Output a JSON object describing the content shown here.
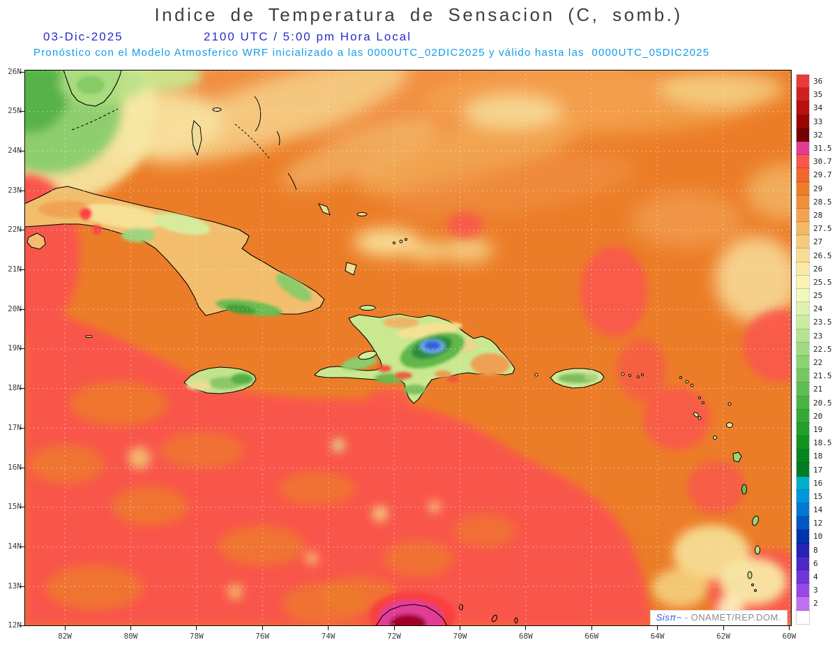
{
  "header": {
    "title": "Indice de Temperatura de Sensacion (C, somb.)",
    "date": "03-Dic-2025",
    "time": "2100 UTC / 5:00 pm Hora Local",
    "forecast_line": "Pronóstico con el Modelo Atmosferico WRF inicializado a las 0000UTC_02DIC2025 y válido hasta las  0000UTC_05DIC2025"
  },
  "watermark": {
    "brand": "Sisπ~",
    "org": " - ONAMET/REP.DOM."
  },
  "chart_data": {
    "type": "heatmap",
    "title": "Indice de Temperatura de Sensacion (C, somb.)",
    "date": "03-Dic-2025",
    "valid_at_utc": "2100 UTC",
    "valid_at_local": "5:00 pm Hora Local",
    "model": "WRF",
    "init_time": "0000UTC_02DIC2025",
    "valid_until": "0000UTC_05DIC2025",
    "units": "C",
    "lat_range": [
      "12N",
      "26N"
    ],
    "lon_range": [
      "83W",
      "60W"
    ],
    "grid": "dotted graticule, 1 deg latitude x 2 deg longitude",
    "lat_ticks": [
      "26N",
      "25N",
      "24N",
      "23N",
      "22N",
      "21N",
      "20N",
      "19N",
      "18N",
      "17N",
      "16N",
      "15N",
      "14N",
      "13N",
      "12N"
    ],
    "lon_ticks": [
      "82W",
      "80W",
      "78W",
      "76W",
      "74W",
      "72W",
      "70W",
      "68W",
      "66W",
      "64W",
      "62W",
      "60W"
    ],
    "colorbar": {
      "orientation": "vertical-right",
      "levels": [
        {
          "label": "36",
          "color": "#e93a3a"
        },
        {
          "label": "35",
          "color": "#d31f1f"
        },
        {
          "label": "34",
          "color": "#b80f0f"
        },
        {
          "label": "33",
          "color": "#970505"
        },
        {
          "label": "32",
          "color": "#770000"
        },
        {
          "label": "31.5",
          "color": "#e23c96"
        },
        {
          "label": "30.7",
          "color": "#f9564c"
        },
        {
          "label": "29.7",
          "color": "#f2662e"
        },
        {
          "label": "29",
          "color": "#ee7d28"
        },
        {
          "label": "28.5",
          "color": "#f0903c"
        },
        {
          "label": "28",
          "color": "#f2a350"
        },
        {
          "label": "27.5",
          "color": "#f4b766"
        },
        {
          "label": "27",
          "color": "#f6ca7c"
        },
        {
          "label": "26.5",
          "color": "#f8dc92"
        },
        {
          "label": "26",
          "color": "#faeaa6"
        },
        {
          "label": "25.5",
          "color": "#faf4b4"
        },
        {
          "label": "25",
          "color": "#f0f8be"
        },
        {
          "label": "24",
          "color": "#ddf2b0"
        },
        {
          "label": "23.5",
          "color": "#c9eca0"
        },
        {
          "label": "23",
          "color": "#b4e491"
        },
        {
          "label": "22.5",
          "color": "#9fdb81"
        },
        {
          "label": "22",
          "color": "#8ad272"
        },
        {
          "label": "21.5",
          "color": "#74c862"
        },
        {
          "label": "21",
          "color": "#5fbe53"
        },
        {
          "label": "20.5",
          "color": "#49b443"
        },
        {
          "label": "20",
          "color": "#34aa34"
        },
        {
          "label": "19",
          "color": "#219f2a"
        },
        {
          "label": "18.5",
          "color": "#109322"
        },
        {
          "label": "18",
          "color": "#05871f"
        },
        {
          "label": "17",
          "color": "#007c26"
        },
        {
          "label": "16",
          "color": "#00b0c8"
        },
        {
          "label": "15",
          "color": "#0096dc"
        },
        {
          "label": "14",
          "color": "#0078d2"
        },
        {
          "label": "12",
          "color": "#0056c3"
        },
        {
          "label": "10",
          "color": "#0034ad"
        },
        {
          "label": "8",
          "color": "#2622b4"
        },
        {
          "label": "6",
          "color": "#4b28c8"
        },
        {
          "label": "4",
          "color": "#7136d8"
        },
        {
          "label": "3",
          "color": "#9648e6"
        },
        {
          "label": "2",
          "color": "#c06ef2"
        },
        {
          "label": "",
          "color": "#ffffff"
        }
      ]
    },
    "regions": [
      {
        "area": "Caribbean Sea south of the Greater Antilles",
        "approx_value_c": "29.7-30.7"
      },
      {
        "area": "Atlantic north of ~21N / east of Cuba",
        "approx_value_c": "28.5-29.7"
      },
      {
        "area": "Bahamas / NW Atlantic lighter bands",
        "approx_value_c": "26-28"
      },
      {
        "area": "Gulf of Mexico corner (top-left green)",
        "approx_value_c": "21-25"
      },
      {
        "area": "Cuba mountain interiors (Escambray, Sierra Maestra)",
        "approx_value_c": "20-25"
      },
      {
        "area": "Hispaniola Cordillera Central minimum (blue spot)",
        "approx_value_c": "12-16"
      },
      {
        "area": "Jamaica / Puerto Rico interiors",
        "approx_value_c": "21-26"
      },
      {
        "area": "Guajira coast at bottom center (magenta/dark red)",
        "approx_value_c": "31.5-34"
      },
      {
        "area": "Lower-right Atlantic pale patches near 61W 13-14N",
        "approx_value_c": "26.5-27.5"
      }
    ]
  }
}
